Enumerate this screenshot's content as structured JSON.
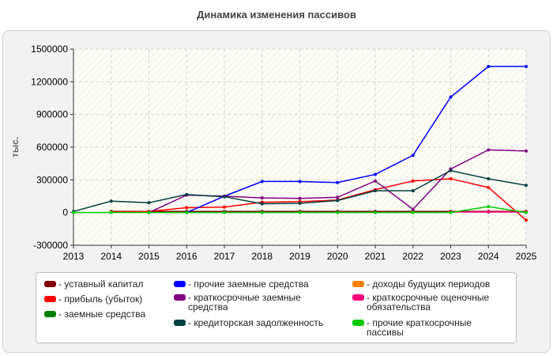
{
  "chart_title": "Динамика изменения пассивов",
  "chart_data": {
    "type": "line",
    "title": "Динамика изменения пассивов",
    "ylabel": "тыс.",
    "xlabel": "",
    "x": [
      2013,
      2014,
      2015,
      2016,
      2017,
      2018,
      2019,
      2020,
      2021,
      2022,
      2023,
      2024,
      2025
    ],
    "ylim": [
      -300000,
      1500000
    ],
    "yticks": [
      -300000,
      0,
      300000,
      600000,
      900000,
      1200000,
      1500000
    ],
    "grid": true,
    "legend_position": "bottom",
    "series": [
      {
        "name": "уставный капитал",
        "color": "#800000",
        "values": [
          null,
          10000,
          10000,
          10000,
          10000,
          10000,
          10000,
          10000,
          10000,
          10000,
          10000,
          10000,
          10000
        ]
      },
      {
        "name": "прибыль (убыток)",
        "color": "#ff0000",
        "values": [
          null,
          5000,
          10000,
          45000,
          50000,
          95000,
          100000,
          115000,
          210000,
          290000,
          310000,
          230000,
          -70000
        ]
      },
      {
        "name": "заемные средства",
        "color": "#008000",
        "values": [
          null,
          null,
          null,
          null,
          null,
          null,
          null,
          null,
          null,
          null,
          null,
          null,
          null
        ]
      },
      {
        "name": "прочие заемные средства",
        "color": "#0000ff",
        "values": [
          null,
          null,
          null,
          0,
          150000,
          285000,
          285000,
          275000,
          350000,
          525000,
          1060000,
          1340000,
          1340000
        ]
      },
      {
        "name": "краткосрочные заемные средства",
        "color": "#800080",
        "values": [
          null,
          null,
          0,
          160000,
          150000,
          135000,
          130000,
          140000,
          290000,
          30000,
          400000,
          575000,
          565000
        ]
      },
      {
        "name": "кредиторская задолженность",
        "color": "#004040",
        "values": [
          10000,
          105000,
          90000,
          165000,
          145000,
          80000,
          85000,
          110000,
          200000,
          200000,
          385000,
          310000,
          250000
        ]
      },
      {
        "name": "доходы будущих периодов",
        "color": "#ff8000",
        "values": [
          null,
          null,
          null,
          null,
          null,
          null,
          null,
          null,
          null,
          null,
          null,
          null,
          null
        ]
      },
      {
        "name": "краткосрочные оценочные обязательства",
        "color": "#ff0080",
        "values": [
          null,
          null,
          null,
          null,
          null,
          null,
          null,
          null,
          null,
          null,
          5000,
          5000,
          5000
        ]
      },
      {
        "name": "прочие краткосрочные пассивы",
        "color": "#00cc00",
        "values": [
          0,
          0,
          0,
          0,
          0,
          0,
          0,
          0,
          0,
          0,
          0,
          55000,
          0
        ]
      }
    ]
  }
}
